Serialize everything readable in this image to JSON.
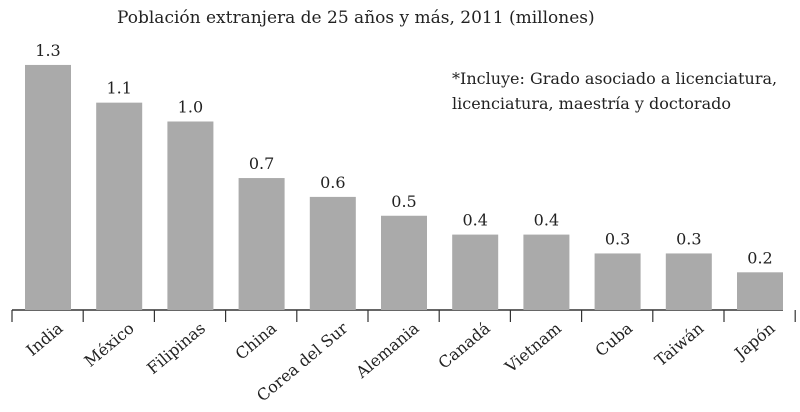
{
  "chart_data": {
    "type": "bar",
    "title": "Población extranjera de 25 años y más, 2011 (millones)",
    "note_lines": [
      "*Incluye: Grado asociado a licenciatura,",
      "licenciatura, maestría y doctorado"
    ],
    "categories": [
      "India",
      "México",
      "Filipinas",
      "China",
      "Corea del Sur",
      "Alemania",
      "Canadá",
      "Vietnam",
      "Cuba",
      "Taiwán",
      "Japón"
    ],
    "values": [
      1.3,
      1.1,
      1.0,
      0.7,
      0.6,
      0.5,
      0.4,
      0.4,
      0.3,
      0.3,
      0.2
    ],
    "value_labels": [
      "1.3",
      "1.1",
      "1.0",
      "0.7",
      "0.6",
      "0.5",
      "0.4",
      "0.4",
      "0.3",
      "0.3",
      "0.2"
    ],
    "bar_color": "#aaaaaa",
    "axis_color": "#333333",
    "xlabel": "",
    "ylabel": "",
    "grid": false
  }
}
